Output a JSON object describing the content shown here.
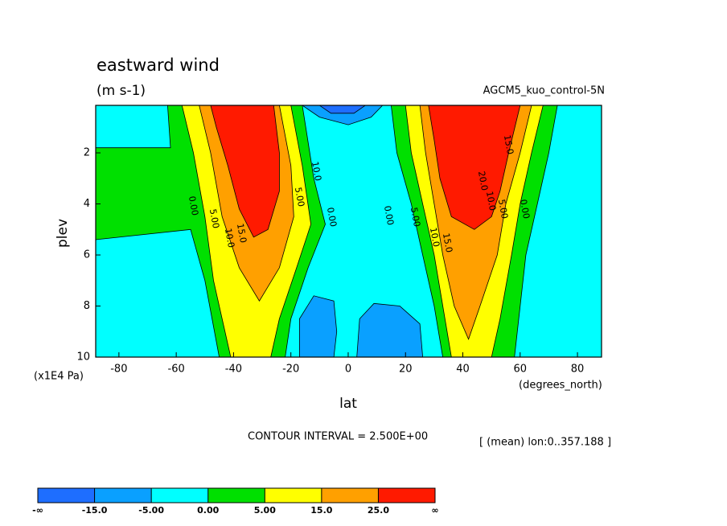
{
  "chart_data": {
    "type": "contour",
    "title": "eastward wind",
    "subtitle": "(m s-1)",
    "dataset": "AGCM5_kuo_control-5N",
    "x_label": "lat",
    "x_units": "(degrees_north)",
    "y_label": "plev",
    "y_units": "(x1E4 Pa)",
    "contour_interval": "CONTOUR INTERVAL = 2.500E+00",
    "footnote": "[ (mean) lon:0..357.188 ]",
    "xlim": [
      -88.1,
      88.4
    ],
    "xticks": [
      -80,
      -60,
      -40,
      -20,
      0,
      20,
      40,
      60,
      80
    ],
    "ylim": [
      10,
      0.14
    ],
    "yticks": [
      2,
      4,
      6,
      8,
      10
    ],
    "background_color": "#00ffff",
    "regions": [
      {
        "color": "#00e000",
        "lat": [
          -88.1,
          -62,
          -63,
          -16,
          -12,
          -8,
          -14,
          -20,
          -22,
          -45,
          -50,
          -55,
          -88.1
        ],
        "plev": [
          1.8,
          1.8,
          0.14,
          0.14,
          3,
          4.8,
          6.5,
          8.5,
          10,
          10,
          7,
          5,
          5.4
        ]
      },
      {
        "color": "#ffff00",
        "lat": [
          -58,
          -20,
          -16,
          -13,
          -18,
          -24,
          -27,
          -41,
          -47,
          -50,
          -54
        ],
        "plev": [
          0.14,
          0.14,
          2.5,
          4.8,
          6.5,
          8.5,
          10,
          10,
          7,
          4.5,
          2
        ]
      },
      {
        "color": "#ffa000",
        "lat": [
          -52,
          -24,
          -20,
          -19,
          -24,
          -31,
          -38,
          -44,
          -48
        ],
        "plev": [
          0.14,
          0.14,
          2.5,
          4.5,
          6.5,
          7.8,
          6.5,
          4.5,
          2
        ]
      },
      {
        "color": "#ff1a00",
        "lat": [
          -48,
          -26,
          -24,
          -24,
          -28,
          -33,
          -38,
          -42,
          -46
        ],
        "plev": [
          0.14,
          0.14,
          2,
          3.5,
          5,
          5.3,
          4.2,
          2.5,
          1
        ]
      },
      {
        "color": "#00e000",
        "lat": [
          15,
          73,
          70,
          66,
          62,
          60,
          58,
          33,
          30,
          26,
          22,
          17
        ],
        "plev": [
          0.14,
          0.14,
          2,
          4,
          6,
          8,
          10,
          10,
          8,
          6,
          4,
          2
        ]
      },
      {
        "color": "#ffff00",
        "lat": [
          20,
          68,
          64,
          60,
          57,
          53,
          50,
          36,
          33,
          30,
          26,
          22
        ],
        "plev": [
          0.14,
          0.14,
          2,
          4,
          6,
          8.5,
          10,
          10,
          8,
          6,
          4,
          2
        ]
      },
      {
        "color": "#ffa000",
        "lat": [
          25,
          64,
          60,
          55,
          52,
          46,
          42,
          37,
          33,
          30,
          27
        ],
        "plev": [
          0.14,
          0.14,
          2,
          4,
          6,
          8,
          9.3,
          8,
          6,
          4,
          2
        ]
      },
      {
        "color": "#ff1a00",
        "lat": [
          28,
          60,
          56,
          53,
          50,
          44,
          36,
          32,
          30
        ],
        "plev": [
          0.14,
          0.14,
          2,
          3.5,
          4.5,
          5,
          4.5,
          3,
          1.5
        ]
      },
      {
        "color": "#0aa0ff",
        "lat": [
          -16,
          12,
          8,
          0,
          -10
        ],
        "plev": [
          0.14,
          0.14,
          0.6,
          0.9,
          0.6
        ]
      },
      {
        "color": "#1e6eff",
        "lat": [
          -10,
          6,
          2,
          -6
        ],
        "plev": [
          0.14,
          0.14,
          0.45,
          0.45
        ]
      },
      {
        "color": "#0aa0ff",
        "lat": [
          -17,
          -17,
          -12,
          -5,
          -4,
          -5
        ],
        "plev": [
          10,
          8.5,
          7.6,
          7.8,
          9,
          10
        ]
      },
      {
        "color": "#0aa0ff",
        "lat": [
          3,
          4,
          9,
          18,
          25,
          26
        ],
        "plev": [
          10,
          8.5,
          7.9,
          8,
          8.7,
          10
        ]
      }
    ],
    "contour_labels": [
      {
        "value": 0,
        "label": "0.00"
      },
      {
        "value": 5,
        "label": "5.00"
      },
      {
        "value": 10,
        "label": "10.0"
      },
      {
        "value": 15,
        "label": "15.0"
      },
      {
        "value": 0,
        "label": "0.00"
      },
      {
        "value": 5,
        "label": "5.00"
      },
      {
        "value": 10,
        "label": "10.0"
      },
      {
        "value": 0,
        "label": "0.00"
      },
      {
        "value": 5,
        "label": "5.00"
      },
      {
        "value": 10,
        "label": "10.0"
      },
      {
        "value": 15,
        "label": "15.0"
      },
      {
        "value": 20,
        "label": "20.0"
      },
      {
        "value": 0,
        "label": "0.00"
      },
      {
        "value": 5,
        "label": "5.00"
      },
      {
        "value": 10,
        "label": "10.0"
      },
      {
        "value": 15,
        "label": "15.0"
      }
    ],
    "colorbar": {
      "colors": [
        "#1e6eff",
        "#0aa0ff",
        "#00ffff",
        "#00e000",
        "#ffff00",
        "#ffa000",
        "#ff1a00"
      ],
      "ticks": [
        "-∞",
        {
          "value": -15,
          "label": "-15.0"
        },
        {
          "value": -5,
          "label": "-5.00"
        },
        {
          "value": 0,
          "label": "0.00"
        },
        {
          "value": 5,
          "label": "5.00"
        },
        {
          "value": 15,
          "label": "15.0"
        },
        {
          "value": 25,
          "label": "25.0"
        },
        "∞"
      ]
    }
  }
}
